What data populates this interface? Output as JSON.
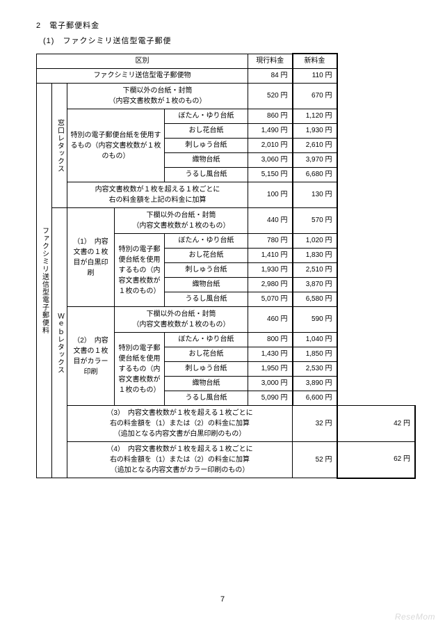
{
  "heading1": "2　電子郵便料金",
  "heading2": "(1)　ファクシミリ送信型電子郵便",
  "header": {
    "kubun": "区別",
    "current": "現行料金",
    "new": "新料金"
  },
  "row_item": {
    "label": "ファクシミリ送信型電子郵便物",
    "current": "84 円",
    "new": "110 円"
  },
  "side_main": "ファクシミリ送信型電子郵便料",
  "side_mado": "窓口レタックス",
  "side_web": "Ｗｅｂレタックス",
  "sub_labels": {
    "s1": "（1）　内容文書の１枚目が白黒印刷",
    "s2": "（2）　内容文書の１枚目がカラー印刷"
  },
  "special_label": "特別の電子郵便台紙を使用するもの（内容文書枚数が１枚のもの）",
  "base_row_label": "下欄以外の台紙・封筒\n（内容文書枚数が１枚のもの）",
  "paper_types": {
    "botan": "ぼたん・ゆり台紙",
    "oshibana": "おし花台紙",
    "shishu": "刺しゅう台紙",
    "orimono": "織物台紙",
    "urushi": "うるし風台紙"
  },
  "extra_mado": "内容文書枚数が１枚を超える１枚ごとに\n右の料金額を上記の料金に加算",
  "extra3": "（3）　内容文書枚数が１枚を超える１枚ごとに\n右の料金額を（1）または（2）の料金に加算\n（追加となる内容文書が白黒印刷のもの）",
  "extra4": "（4）　内容文書枚数が１枚を超える１枚ごとに\n右の料金額を（1）または（2）の料金に加算\n（追加となる内容文書がカラー印刷のもの）",
  "prices": {
    "mado": {
      "base": {
        "c": "520 円",
        "n": "670 円"
      },
      "botan": {
        "c": "860 円",
        "n": "1,120 円"
      },
      "oshibana": {
        "c": "1,490 円",
        "n": "1,930 円"
      },
      "shishu": {
        "c": "2,010 円",
        "n": "2,610 円"
      },
      "orimono": {
        "c": "3,060 円",
        "n": "3,970 円"
      },
      "urushi": {
        "c": "5,150 円",
        "n": "6,680 円"
      },
      "extra": {
        "c": "100 円",
        "n": "130 円"
      }
    },
    "web1": {
      "base": {
        "c": "440 円",
        "n": "570 円"
      },
      "botan": {
        "c": "780 円",
        "n": "1,020 円"
      },
      "oshibana": {
        "c": "1,410 円",
        "n": "1,830 円"
      },
      "shishu": {
        "c": "1,930 円",
        "n": "2,510 円"
      },
      "orimono": {
        "c": "2,980 円",
        "n": "3,870 円"
      },
      "urushi": {
        "c": "5,070 円",
        "n": "6,580 円"
      }
    },
    "web2": {
      "base": {
        "c": "460 円",
        "n": "590 円"
      },
      "botan": {
        "c": "800 円",
        "n": "1,040 円"
      },
      "oshibana": {
        "c": "1,430 円",
        "n": "1,850 円"
      },
      "shishu": {
        "c": "1,950 円",
        "n": "2,530 円"
      },
      "orimono": {
        "c": "3,000 円",
        "n": "3,890 円"
      },
      "urushi": {
        "c": "5,090 円",
        "n": "6,600 円"
      }
    },
    "extra3": {
      "c": "32 円",
      "n": "42 円"
    },
    "extra4": {
      "c": "52 円",
      "n": "62 円"
    }
  },
  "page_number": "7",
  "watermark": "ReseMom"
}
